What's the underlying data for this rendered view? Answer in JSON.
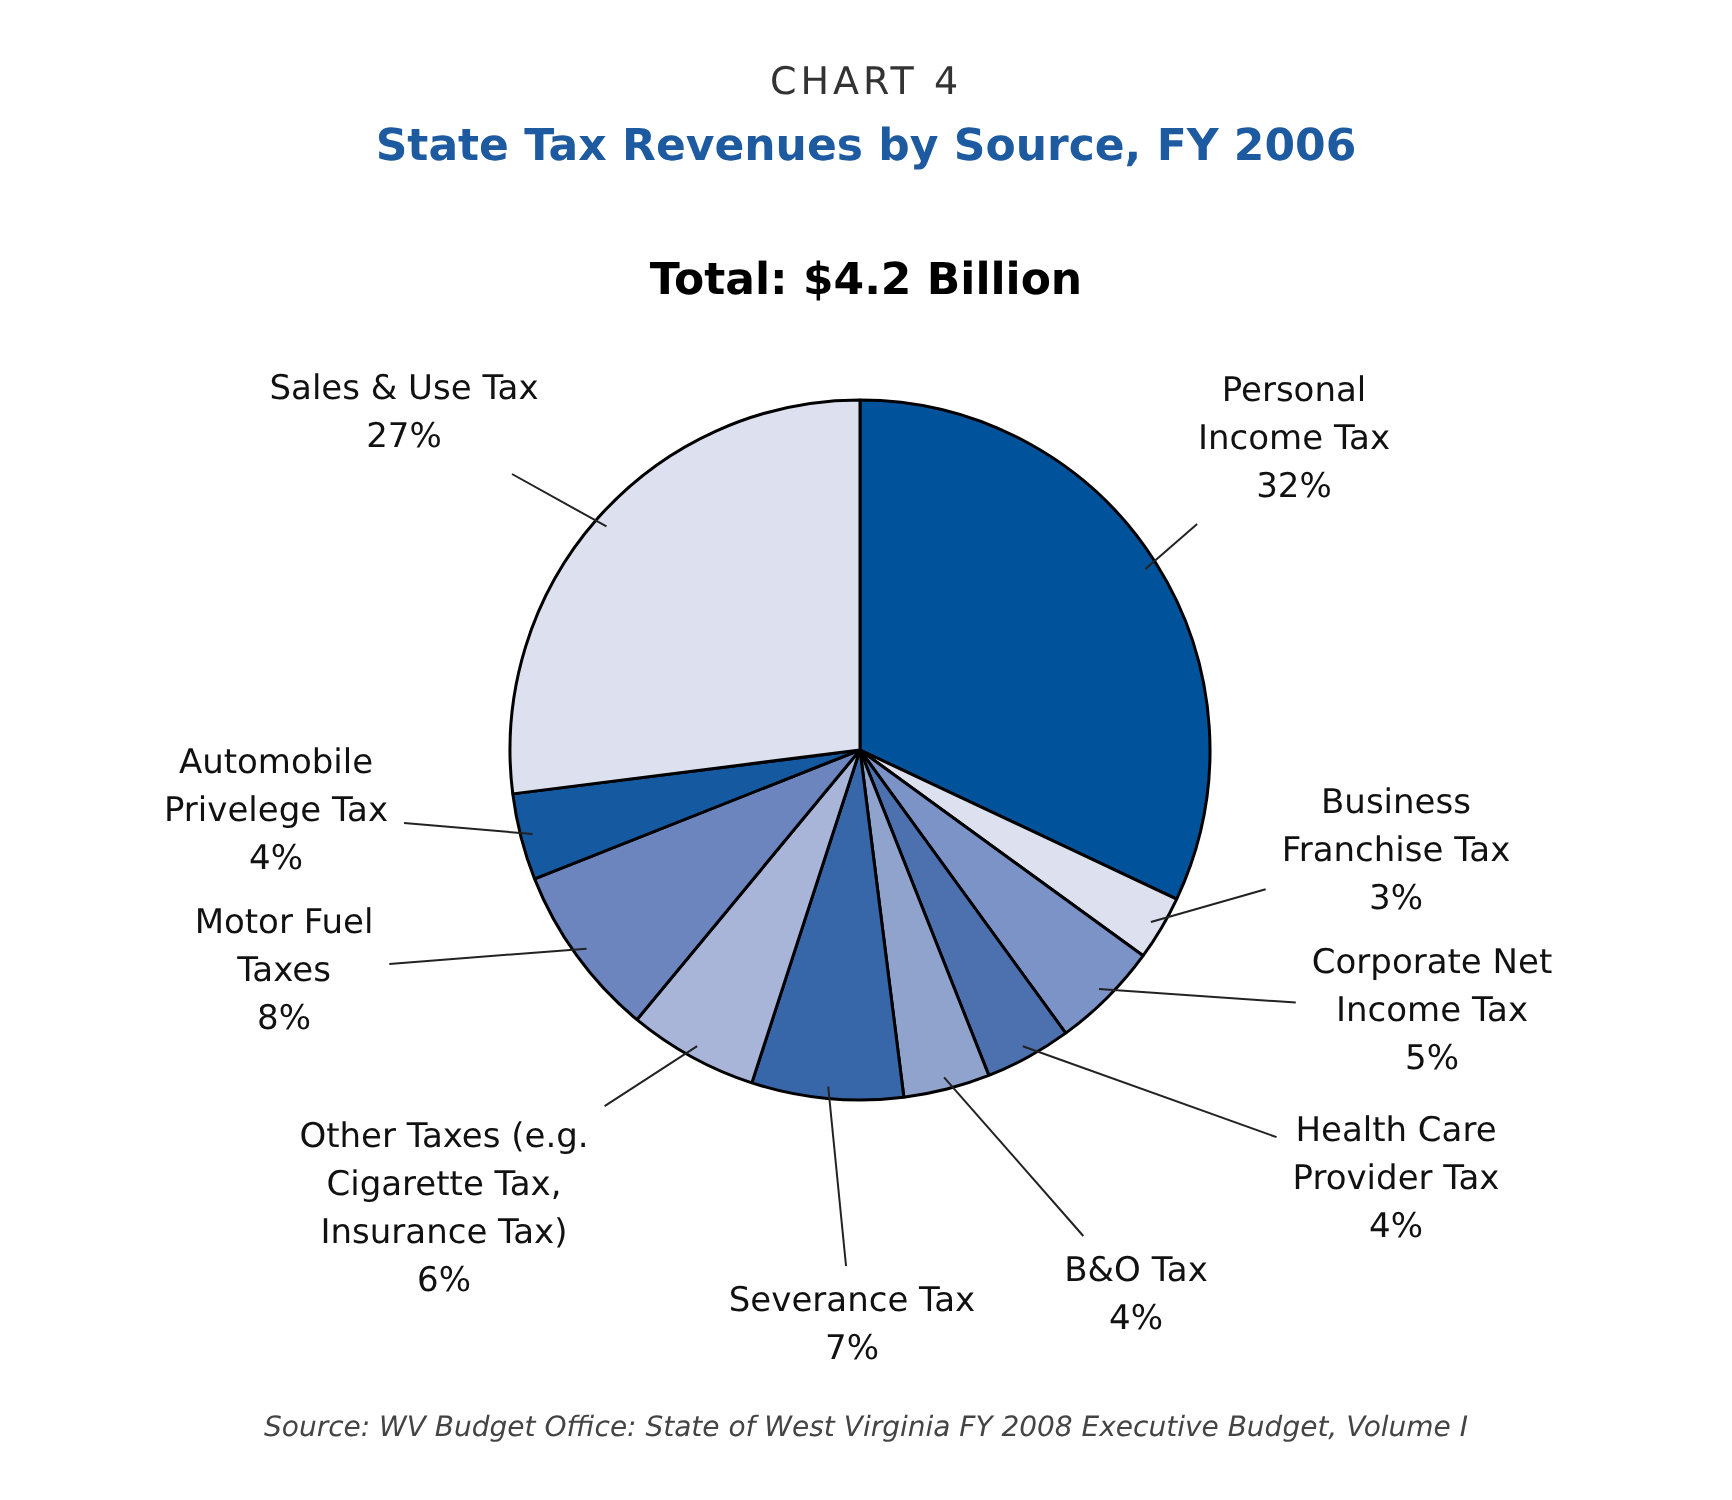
{
  "chart_data": {
    "type": "pie",
    "title": "CHART 4",
    "subtitle": "State Tax Revenues by Source, FY 2006",
    "annotations": [
      "Total: $4.2 Billion",
      "Source: WV Budget Office: State of West Virginia FY 2008 Executive Budget, Volume I"
    ],
    "categories": [
      "Personal Income Tax",
      "Business Franchise Tax",
      "Corporate Net Income Tax",
      "Health Care Provider Tax",
      "B&O Tax",
      "Severance Tax",
      "Other Taxes (e.g. Cigarette Tax, Insurance Tax)",
      "Motor Fuel Taxes",
      "Automobile Privelege Tax",
      "Sales & Use Tax"
    ],
    "values": [
      32,
      3,
      5,
      4,
      4,
      7,
      6,
      8,
      4,
      27
    ],
    "value_labels": [
      "32%",
      "3%",
      "5%",
      "4%",
      "4%",
      "7%",
      "6%",
      "8%",
      "4%",
      "27%"
    ],
    "colors": [
      "#00529b",
      "#dde0ee",
      "#7b93c6",
      "#4d70ae",
      "#90a3cd",
      "#3867a9",
      "#a8b5d8",
      "#6c85bf",
      "#155aa0",
      "#dde0ee"
    ],
    "legend": false
  }
}
